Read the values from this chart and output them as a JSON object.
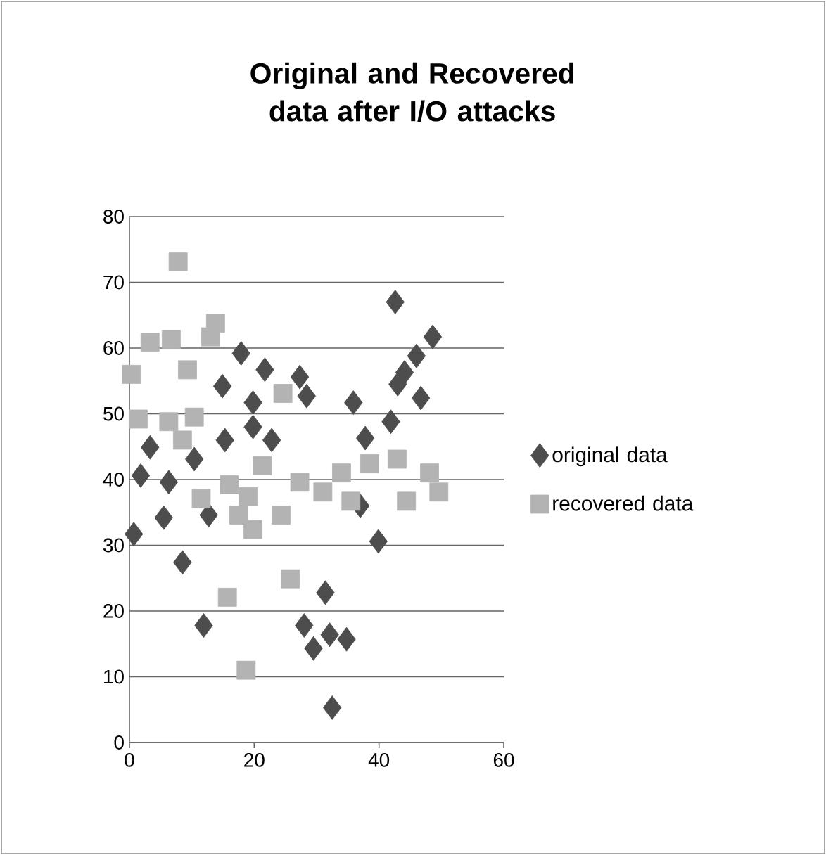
{
  "chart_data": {
    "type": "scatter",
    "title": "Original and Recovered data after I/O attacks",
    "xlim": [
      0,
      60
    ],
    "xticks": [
      0,
      20,
      40,
      60
    ],
    "ylim": [
      0,
      80
    ],
    "yticks": [
      0,
      10,
      20,
      30,
      40,
      50,
      60,
      70,
      80
    ],
    "grid": "y",
    "legend": "right",
    "series": [
      {
        "name": "original data",
        "color": "#4d4d4d",
        "marker": "diamond",
        "x": [
          17.9,
          21.7,
          27.3,
          14.9,
          28.4,
          19.8,
          3.3,
          10.4,
          15.3,
          19.8,
          22.8,
          1.8,
          6.3,
          5.5,
          0.7,
          8.5,
          11.9,
          12.7,
          31.4,
          28.0,
          29.5,
          32.5,
          42.6,
          48.6,
          46.0,
          44.1,
          43.0,
          46.7,
          35.9,
          41.9,
          37.8,
          37.0,
          39.9,
          34.8,
          32.1
        ],
        "values": [
          59.2,
          56.7,
          55.6,
          54.2,
          52.7,
          51.7,
          44.9,
          43.1,
          46.0,
          48.0,
          46.0,
          40.6,
          39.6,
          34.2,
          31.7,
          27.4,
          17.8,
          34.6,
          22.8,
          17.8,
          14.3,
          5.3,
          67.0,
          61.7,
          58.8,
          56.3,
          54.5,
          52.4,
          51.7,
          48.8,
          46.3,
          36.0,
          30.6,
          15.7,
          16.4
        ]
      },
      {
        "name": "recovered data",
        "color": "#b3b3b3",
        "marker": "square",
        "x": [
          7.8,
          13.8,
          3.3,
          6.7,
          13.0,
          0.3,
          9.3,
          24.6,
          1.4,
          6.3,
          10.4,
          8.5,
          21.3,
          16.0,
          11.5,
          19.0,
          19.8,
          24.3,
          27.3,
          17.5,
          25.8,
          15.7,
          18.7,
          31.0,
          34.0,
          38.5,
          42.9,
          48.1,
          49.6,
          44.4,
          35.5
        ],
        "values": [
          73.1,
          63.8,
          60.9,
          61.3,
          61.7,
          56.0,
          56.7,
          53.1,
          49.2,
          48.8,
          49.5,
          46.0,
          42.1,
          39.2,
          37.1,
          37.4,
          32.4,
          34.6,
          39.6,
          34.6,
          24.9,
          22.1,
          11.0,
          38.1,
          41.0,
          42.4,
          43.1,
          41.0,
          38.1,
          36.7,
          36.7
        ]
      }
    ]
  }
}
